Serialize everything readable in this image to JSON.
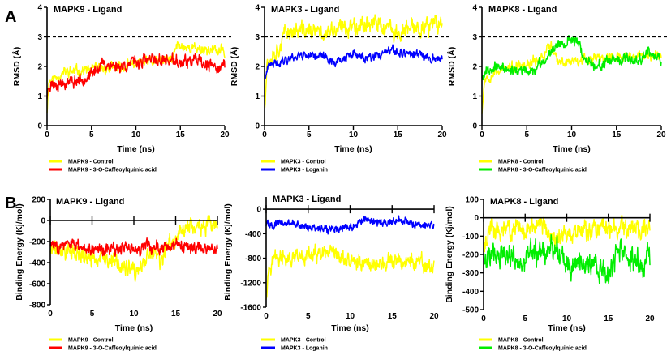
{
  "panel_labels": [
    "A",
    "B"
  ],
  "chart_data": [
    {
      "id": "A1",
      "type": "line",
      "title": "MAPK9 - Ligand",
      "xlabel": "Time (ns)",
      "ylabel": "RMSD (Å)",
      "xlim": [
        0,
        20
      ],
      "ylim": [
        0,
        4
      ],
      "xticks": [
        "0",
        "5",
        "10",
        "15",
        "20"
      ],
      "yticks": [
        "0",
        "1",
        "2",
        "3",
        "4"
      ],
      "reference_line": {
        "y": 3,
        "style": "dashed"
      },
      "x_axis_at": 0,
      "series": [
        {
          "name": "MAPK9 - Control",
          "color": "#ffff00",
          "noise": 0.12,
          "seed": 11,
          "trend": [
            [
              0,
              0.5
            ],
            [
              0.2,
              1.5
            ],
            [
              2,
              1.8
            ],
            [
              5,
              1.9
            ],
            [
              8,
              1.95
            ],
            [
              10,
              2.1
            ],
            [
              14,
              2.2
            ],
            [
              14.6,
              2.7
            ],
            [
              17,
              2.6
            ],
            [
              20,
              2.5
            ]
          ]
        },
        {
          "name": "MAPK9 - 3-O-Caffeoylquinic acid",
          "color": "#ff0000",
          "noise": 0.14,
          "seed": 23,
          "trend": [
            [
              0,
              1.0
            ],
            [
              0.2,
              1.4
            ],
            [
              3,
              1.5
            ],
            [
              5,
              1.7
            ],
            [
              6,
              2.1
            ],
            [
              8,
              2.0
            ],
            [
              11,
              2.2
            ],
            [
              14,
              2.2
            ],
            [
              15,
              2.1
            ],
            [
              16.5,
              2.2
            ],
            [
              18,
              2.0
            ],
            [
              20,
              2.0
            ]
          ]
        }
      ]
    },
    {
      "id": "A2",
      "type": "line",
      "title": "MAPK3 - Ligand",
      "xlabel": "Time (ns)",
      "ylabel": "RMSD (Å)",
      "xlim": [
        0,
        20
      ],
      "ylim": [
        0,
        4
      ],
      "xticks": [
        "0",
        "5",
        "10",
        "15",
        "20"
      ],
      "yticks": [
        "0",
        "1",
        "2",
        "3",
        "4"
      ],
      "reference_line": {
        "y": 3,
        "style": "dashed"
      },
      "x_axis_at": 0,
      "series": [
        {
          "name": "MAPK3 - Control",
          "color": "#ffff00",
          "noise": 0.2,
          "seed": 37,
          "trend": [
            [
              0,
              0.7
            ],
            [
              0.3,
              2.2
            ],
            [
              1.5,
              2.6
            ],
            [
              2.5,
              3.2
            ],
            [
              5,
              3.2
            ],
            [
              7,
              3.1
            ],
            [
              10,
              3.4
            ],
            [
              12,
              3.5
            ],
            [
              15,
              3.1
            ],
            [
              17,
              3.3
            ],
            [
              20,
              3.4
            ]
          ]
        },
        {
          "name": "MAPK3 - Loganin",
          "color": "#0000ff",
          "noise": 0.1,
          "seed": 41,
          "trend": [
            [
              0,
              1.6
            ],
            [
              0.5,
              2.0
            ],
            [
              2,
              2.2
            ],
            [
              4,
              2.4
            ],
            [
              6,
              2.4
            ],
            [
              8,
              2.15
            ],
            [
              10,
              2.4
            ],
            [
              12,
              2.25
            ],
            [
              14,
              2.5
            ],
            [
              16,
              2.45
            ],
            [
              18,
              2.35
            ],
            [
              20,
              2.25
            ]
          ]
        }
      ]
    },
    {
      "id": "A3",
      "type": "line",
      "title": "MAPK8 - Ligand",
      "xlabel": "Time (ns)",
      "ylabel": "RMSD (Å)",
      "xlim": [
        0,
        20
      ],
      "ylim": [
        0,
        4
      ],
      "xticks": [
        "0",
        "5",
        "10",
        "15",
        "20"
      ],
      "yticks": [
        "0",
        "1",
        "2",
        "3",
        "4"
      ],
      "reference_line": {
        "y": 3,
        "style": "dashed"
      },
      "x_axis_at": 0,
      "series": [
        {
          "name": "MAPK8 - Control",
          "color": "#ffff00",
          "noise": 0.12,
          "seed": 53,
          "trend": [
            [
              0,
              0.5
            ],
            [
              0.3,
              1.6
            ],
            [
              2,
              1.9
            ],
            [
              5,
              2.0
            ],
            [
              7,
              2.4
            ],
            [
              7.5,
              2.8
            ],
            [
              8.5,
              2.1
            ],
            [
              10,
              2.2
            ],
            [
              12,
              2.3
            ],
            [
              15,
              2.3
            ],
            [
              18,
              2.35
            ],
            [
              20,
              2.4
            ]
          ]
        },
        {
          "name": "MAPK8 - 3-O-Caffeoylquinic acid",
          "color": "#00ee00",
          "noise": 0.12,
          "seed": 67,
          "trend": [
            [
              0,
              1.7
            ],
            [
              1,
              2.0
            ],
            [
              3,
              1.9
            ],
            [
              5.5,
              1.8
            ],
            [
              7,
              2.2
            ],
            [
              8,
              2.7
            ],
            [
              10,
              2.9
            ],
            [
              10.8,
              2.9
            ],
            [
              11.2,
              2.3
            ],
            [
              13,
              2.0
            ],
            [
              15,
              2.2
            ],
            [
              17,
              2.2
            ],
            [
              18.5,
              2.5
            ],
            [
              20,
              2.2
            ]
          ]
        }
      ]
    },
    {
      "id": "B1",
      "type": "line",
      "title": "MAPK9 - Ligand",
      "xlabel": "Time (ns)",
      "ylabel": "Binding Energy (Kj/mol)",
      "xlim": [
        0,
        20
      ],
      "ylim": [
        -800,
        200
      ],
      "xticks": [
        "0",
        "5",
        "10",
        "15",
        "20"
      ],
      "yticks": [
        "-800",
        "-600",
        "-400",
        "-200",
        "0",
        "200"
      ],
      "x_axis_at": 0,
      "series": [
        {
          "name": "MAPK9 - Control",
          "color": "#ffff00",
          "noise": 55,
          "seed": 71,
          "trend": [
            [
              0,
              -280
            ],
            [
              2,
              -280
            ],
            [
              4,
              -350
            ],
            [
              7,
              -380
            ],
            [
              9,
              -450
            ],
            [
              10.5,
              -520
            ],
            [
              11.5,
              -350
            ],
            [
              12.5,
              -300
            ],
            [
              13.3,
              -420
            ],
            [
              14,
              -250
            ],
            [
              15,
              -180
            ],
            [
              16,
              -60
            ],
            [
              18,
              -60
            ],
            [
              20,
              -50
            ]
          ]
        },
        {
          "name": "MAPK9 - 3-O-Caffeoylquinic acid",
          "color": "#ff0000",
          "noise": 40,
          "seed": 83,
          "trend": [
            [
              0,
              -230
            ],
            [
              3,
              -240
            ],
            [
              6,
              -270
            ],
            [
              10,
              -270
            ],
            [
              12,
              -260
            ],
            [
              14,
              -240
            ],
            [
              16,
              -270
            ],
            [
              20,
              -260
            ]
          ]
        }
      ]
    },
    {
      "id": "B2",
      "type": "line",
      "title": "MAPK3 - Ligand",
      "xlabel": "Time (ns)",
      "ylabel": "Binding Energy (Kj/mol)",
      "xlim": [
        0,
        20
      ],
      "ylim": [
        -1600,
        200
      ],
      "xticks": [
        "0",
        "5",
        "10",
        "15",
        "20"
      ],
      "yticks": [
        "-1600",
        "-1200",
        "-800",
        "-400",
        "0"
      ],
      "x_axis_at": 0,
      "series": [
        {
          "name": "MAPK3 - Control",
          "color": "#ffff00",
          "noise": 90,
          "seed": 97,
          "trend": [
            [
              0,
              -1400
            ],
            [
              0.3,
              -950
            ],
            [
              1,
              -780
            ],
            [
              3,
              -850
            ],
            [
              5,
              -760
            ],
            [
              8,
              -760
            ],
            [
              10,
              -860
            ],
            [
              14,
              -900
            ],
            [
              17,
              -850
            ],
            [
              20,
              -960
            ]
          ]
        },
        {
          "name": "MAPK3 - Loganin",
          "color": "#0000ff",
          "noise": 45,
          "seed": 101,
          "trend": [
            [
              0,
              -250
            ],
            [
              3,
              -220
            ],
            [
              5,
              -300
            ],
            [
              8,
              -320
            ],
            [
              10,
              -280
            ],
            [
              12,
              -170
            ],
            [
              14,
              -230
            ],
            [
              16,
              -170
            ],
            [
              18,
              -260
            ],
            [
              20,
              -270
            ]
          ]
        }
      ]
    },
    {
      "id": "B3",
      "type": "line",
      "title": "MAPK8 - Ligand",
      "xlabel": "Time (ns)",
      "ylabel": "Binding Energy (Kj/mol)",
      "xlim": [
        0,
        20
      ],
      "ylim": [
        -500,
        100
      ],
      "xticks": [
        "0",
        "5",
        "10",
        "15",
        "20"
      ],
      "yticks": [
        "-500",
        "-400",
        "-300",
        "-200",
        "-100",
        "0",
        "100"
      ],
      "x_axis_at": 0,
      "series": [
        {
          "name": "MAPK8 - Control",
          "color": "#ffff00",
          "noise": 35,
          "seed": 113,
          "trend": [
            [
              0,
              -150
            ],
            [
              1,
              -60
            ],
            [
              3,
              -60
            ],
            [
              5,
              -60
            ],
            [
              7,
              -40
            ],
            [
              8.5,
              -120
            ],
            [
              9.5,
              -90
            ],
            [
              12,
              -70
            ],
            [
              15,
              -60
            ],
            [
              17,
              -60
            ],
            [
              20,
              -60
            ]
          ]
        },
        {
          "name": "MAPK8 - 3-O-Caffeoylquinic acid",
          "color": "#00ee00",
          "noise": 45,
          "seed": 127,
          "trend": [
            [
              0,
              -200
            ],
            [
              2,
              -190
            ],
            [
              4,
              -230
            ],
            [
              5,
              -240
            ],
            [
              6,
              -190
            ],
            [
              9,
              -180
            ],
            [
              10.5,
              -280
            ],
            [
              12,
              -230
            ],
            [
              14,
              -270
            ],
            [
              14.8,
              -330
            ],
            [
              16,
              -200
            ],
            [
              18,
              -220
            ],
            [
              19,
              -260
            ],
            [
              20,
              -220
            ]
          ]
        }
      ]
    }
  ]
}
